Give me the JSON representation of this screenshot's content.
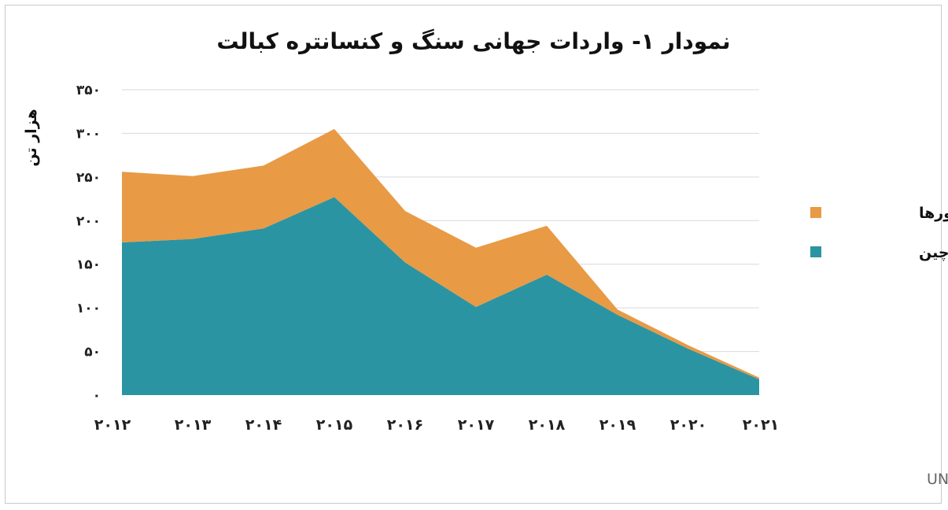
{
  "chart_data": {
    "type": "area",
    "title": "نمودار ۱- واردات جهانی سنگ و کنسانتره کبالت",
    "ylabel": "هزار تن",
    "xlabel": "",
    "categories": [
      "۲۰۱۲",
      "۲۰۱۳",
      "۲۰۱۴",
      "۲۰۱۵",
      "۲۰۱۶",
      "۲۰۱۷",
      "۲۰۱۸",
      "۲۰۱۹",
      "۲۰۲۰",
      "۲۰۲۱"
    ],
    "x": [
      2012,
      2013,
      2014,
      2015,
      2016,
      2017,
      2018,
      2019,
      2020,
      2021
    ],
    "stacked": true,
    "ylim": [
      0,
      350
    ],
    "yticks": [
      0,
      50,
      100,
      150,
      200,
      250,
      300,
      350
    ],
    "ytick_labels": [
      "۰",
      "۵۰",
      "۱۰۰",
      "۱۵۰",
      "۲۰۰",
      "۲۵۰",
      "۳۰۰",
      "۳۵۰"
    ],
    "grid": true,
    "legend_position": "right",
    "series": [
      {
        "name": "چین",
        "color": "#2b94a2",
        "values": [
          175,
          179,
          191,
          227,
          152,
          101,
          138,
          92,
          53,
          18
        ]
      },
      {
        "name": "سایر کشورها",
        "color": "#e89a45",
        "values": [
          81,
          72,
          72,
          78,
          59,
          68,
          56,
          6,
          4,
          2
        ]
      }
    ],
    "source": "منبع:UN Comtrade"
  }
}
